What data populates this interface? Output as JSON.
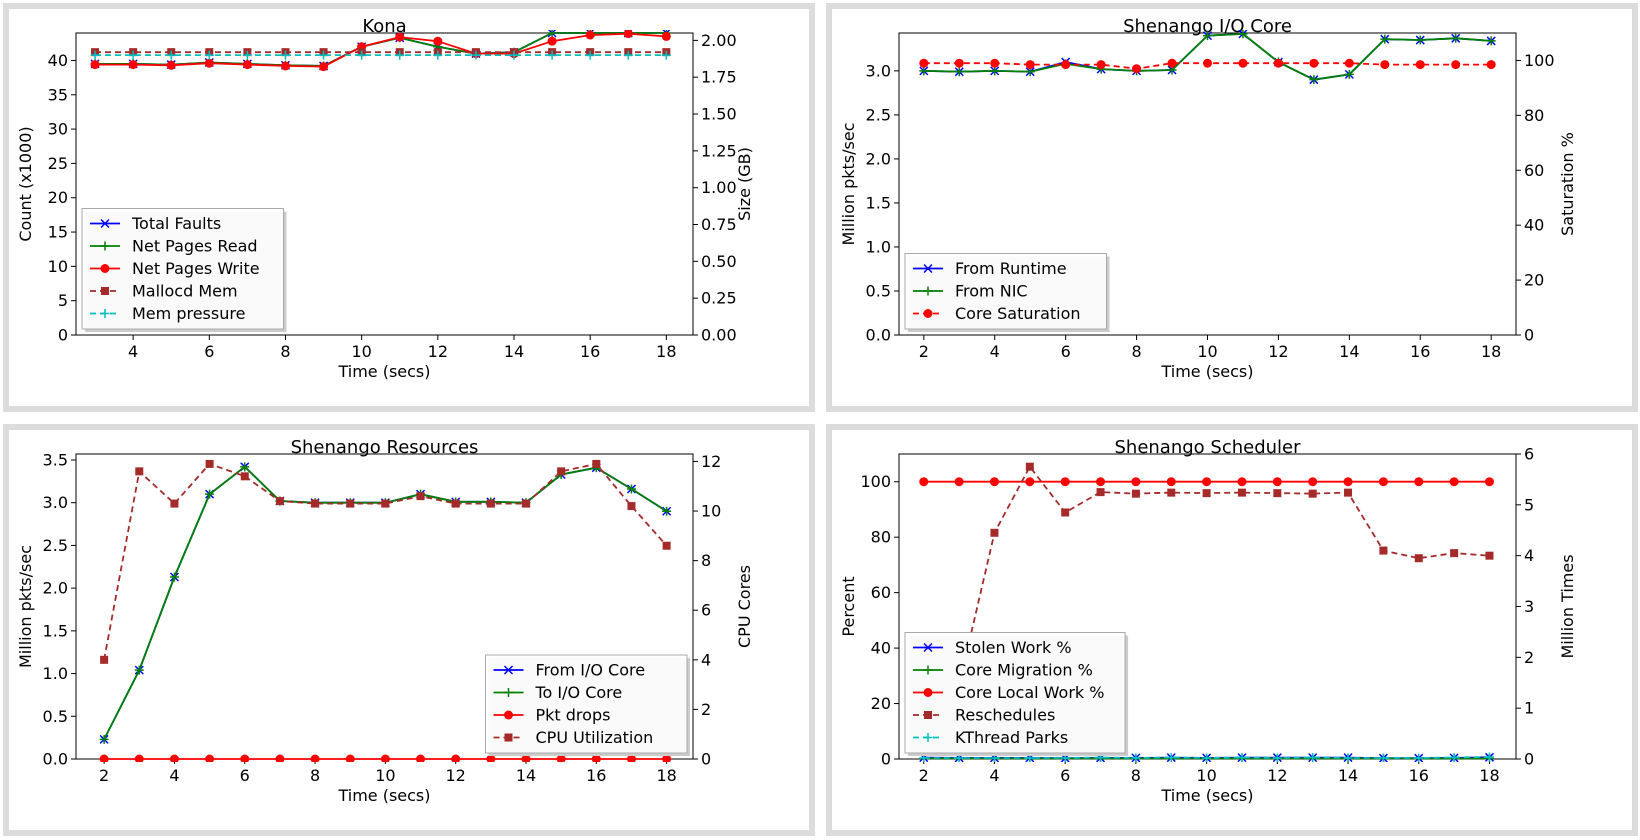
{
  "chart_data": [
    {
      "type": "line",
      "title": "Kona",
      "xlabel": "Time (secs)",
      "ylabel": "Count (x1000)",
      "y2label": "Size (GB)",
      "xlim": [
        2.5,
        18.7
      ],
      "ylim": [
        0,
        44
      ],
      "y2lim": [
        0,
        2.05
      ],
      "xticks": [
        4,
        6,
        8,
        10,
        12,
        14,
        16,
        18
      ],
      "yticks": [
        0,
        5,
        10,
        15,
        20,
        25,
        30,
        35,
        40
      ],
      "y2ticks": [
        0.0,
        0.25,
        0.5,
        0.75,
        1.0,
        1.25,
        1.5,
        1.75,
        2.0
      ],
      "legend_position": "lower-left",
      "x": [
        3,
        4,
        5,
        6,
        7,
        8,
        9,
        10,
        11,
        12,
        13,
        14,
        15,
        16,
        17,
        18
      ],
      "series": [
        {
          "name": "Total Faults",
          "color": "#0000ff",
          "marker": "x",
          "dash": false,
          "axis": "left",
          "values": [
            39.5,
            39.5,
            39.4,
            39.7,
            39.5,
            39.3,
            39.2,
            42.0,
            43.3,
            42.0,
            41.0,
            41.2,
            44.0,
            44.0,
            44.0,
            44.0
          ]
        },
        {
          "name": "Net Pages Read",
          "color": "#008000",
          "marker": "+",
          "dash": false,
          "axis": "left",
          "values": [
            39.5,
            39.5,
            39.4,
            39.7,
            39.5,
            39.3,
            39.2,
            42.0,
            43.3,
            42.0,
            41.0,
            41.2,
            44.0,
            44.0,
            44.0,
            44.0
          ]
        },
        {
          "name": "Net Pages Write",
          "color": "#ff0000",
          "marker": "o",
          "dash": false,
          "axis": "left",
          "values": [
            39.4,
            39.4,
            39.3,
            39.6,
            39.4,
            39.2,
            39.1,
            42.0,
            43.4,
            42.8,
            41.0,
            41.0,
            42.8,
            43.7,
            43.9,
            43.5
          ]
        },
        {
          "name": "Mallocd Mem",
          "color": "#a52a2a",
          "marker": "s",
          "dash": true,
          "axis": "right",
          "values": [
            1.92,
            1.92,
            1.92,
            1.92,
            1.92,
            1.92,
            1.92,
            1.92,
            1.92,
            1.92,
            1.92,
            1.92,
            1.92,
            1.92,
            1.92,
            1.92
          ]
        },
        {
          "name": "Mem pressure",
          "color": "#00bfbf",
          "marker": "+",
          "dash": true,
          "axis": "right",
          "values": [
            1.9,
            1.9,
            1.9,
            1.9,
            1.9,
            1.9,
            1.9,
            1.9,
            1.9,
            1.9,
            1.9,
            1.9,
            1.9,
            1.9,
            1.9,
            1.9
          ]
        }
      ]
    },
    {
      "type": "line",
      "title": "Shenango I/O Core",
      "xlabel": "Time (secs)",
      "ylabel": "Million pkts/sec",
      "y2label": "Saturation %",
      "xlim": [
        1.3,
        18.7
      ],
      "ylim": [
        0,
        3.43
      ],
      "y2lim": [
        0,
        110
      ],
      "xticks": [
        2,
        4,
        6,
        8,
        10,
        12,
        14,
        16,
        18
      ],
      "yticks": [
        0.0,
        0.5,
        1.0,
        1.5,
        2.0,
        2.5,
        3.0
      ],
      "y2ticks": [
        0,
        20,
        40,
        60,
        80,
        100
      ],
      "legend_position": "lower-left",
      "x": [
        2,
        3,
        4,
        5,
        6,
        7,
        8,
        9,
        10,
        11,
        12,
        13,
        14,
        15,
        16,
        17,
        18
      ],
      "series": [
        {
          "name": "From Runtime",
          "color": "#0000ff",
          "marker": "x",
          "dash": false,
          "axis": "left",
          "values": [
            3.0,
            2.99,
            3.0,
            2.99,
            3.1,
            3.02,
            3.0,
            3.01,
            3.4,
            3.42,
            3.1,
            2.9,
            2.96,
            3.36,
            3.35,
            3.37,
            3.34
          ]
        },
        {
          "name": "From NIC",
          "color": "#008000",
          "marker": "+",
          "dash": false,
          "axis": "left",
          "values": [
            3.0,
            2.99,
            3.0,
            2.99,
            3.08,
            3.02,
            3.0,
            3.01,
            3.4,
            3.42,
            3.1,
            2.9,
            2.96,
            3.36,
            3.35,
            3.37,
            3.34
          ]
        },
        {
          "name": "Core Saturation",
          "color": "#ff0000",
          "marker": "o",
          "dash": true,
          "axis": "right",
          "values": [
            99,
            99,
            99,
            98.5,
            98.5,
            98.5,
            97,
            99,
            99,
            99,
            99,
            99,
            99,
            98.5,
            98.5,
            98.5,
            98.5
          ]
        }
      ]
    },
    {
      "type": "line",
      "title": "Shenango Resources",
      "xlabel": "Time (secs)",
      "ylabel": "Million pkts/sec",
      "y2label": "CPU Cores",
      "xlim": [
        1.2,
        18.75
      ],
      "ylim": [
        0,
        3.57
      ],
      "y2lim": [
        0,
        12.3
      ],
      "xticks": [
        2,
        4,
        6,
        8,
        10,
        12,
        14,
        16,
        18
      ],
      "yticks": [
        0.0,
        0.5,
        1.0,
        1.5,
        2.0,
        2.5,
        3.0,
        3.5
      ],
      "y2ticks": [
        0,
        2,
        4,
        6,
        8,
        10,
        12
      ],
      "legend_position": "lower-right",
      "x": [
        2,
        3,
        4,
        5,
        6,
        7,
        8,
        9,
        10,
        11,
        12,
        13,
        14,
        15,
        16,
        17,
        18
      ],
      "series": [
        {
          "name": "From I/O Core",
          "color": "#0000ff",
          "marker": "x",
          "dash": false,
          "axis": "left",
          "values": [
            0.23,
            1.04,
            2.13,
            3.1,
            3.42,
            3.02,
            3.0,
            3.0,
            3.0,
            3.1,
            3.01,
            3.01,
            3.0,
            3.33,
            3.41,
            3.16,
            2.9
          ]
        },
        {
          "name": "To I/O Core",
          "color": "#008000",
          "marker": "+",
          "dash": false,
          "axis": "left",
          "values": [
            0.23,
            1.04,
            2.13,
            3.1,
            3.42,
            3.02,
            3.0,
            3.0,
            3.0,
            3.1,
            3.01,
            3.01,
            3.0,
            3.33,
            3.41,
            3.16,
            2.9
          ]
        },
        {
          "name": "Pkt drops",
          "color": "#ff0000",
          "marker": "o",
          "dash": false,
          "axis": "left",
          "values": [
            0,
            0,
            0,
            0,
            0,
            0,
            0,
            0,
            0,
            0,
            0,
            0,
            0,
            0,
            0,
            0,
            0
          ]
        },
        {
          "name": "CPU Utilization",
          "color": "#a52a2a",
          "marker": "s",
          "dash": true,
          "axis": "right",
          "values": [
            4.0,
            11.6,
            10.3,
            11.9,
            11.4,
            10.4,
            10.3,
            10.3,
            10.3,
            10.6,
            10.3,
            10.3,
            10.3,
            11.6,
            11.9,
            10.2,
            8.6
          ]
        }
      ]
    },
    {
      "type": "line",
      "title": "Shenango Scheduler",
      "xlabel": "Time (secs)",
      "ylabel": "Percent",
      "y2label": "Million Times",
      "xlim": [
        1.3,
        18.75
      ],
      "ylim": [
        0,
        110
      ],
      "y2lim": [
        0,
        6
      ],
      "xticks": [
        2,
        4,
        6,
        8,
        10,
        12,
        14,
        16,
        18
      ],
      "yticks": [
        0,
        20,
        40,
        60,
        80,
        100
      ],
      "y2ticks": [
        0,
        1,
        2,
        3,
        4,
        5,
        6
      ],
      "legend_position": "lower-left",
      "x": [
        2,
        3,
        4,
        5,
        6,
        7,
        8,
        9,
        10,
        11,
        12,
        13,
        14,
        15,
        16,
        17,
        18
      ],
      "series": [
        {
          "name": "Stolen Work %",
          "color": "#0000ff",
          "marker": "x",
          "dash": false,
          "axis": "left",
          "values": [
            0.5,
            0.4,
            0.4,
            0.4,
            0.3,
            0.4,
            0.4,
            0.5,
            0.4,
            0.5,
            0.5,
            0.5,
            0.5,
            0.3,
            0.3,
            0.4,
            0.6
          ]
        },
        {
          "name": "Core Migration %",
          "color": "#008000",
          "marker": "+",
          "dash": false,
          "axis": "left",
          "values": [
            0.2,
            0.2,
            0.2,
            0.2,
            0.2,
            0.2,
            0.2,
            0.2,
            0.2,
            0.2,
            0.2,
            0.2,
            0.2,
            0.2,
            0.2,
            0.2,
            0.2
          ]
        },
        {
          "name": "Core Local Work %",
          "color": "#ff0000",
          "marker": "o",
          "dash": false,
          "axis": "left",
          "values": [
            100,
            100,
            100,
            100,
            100,
            100,
            100,
            100,
            100,
            100,
            100,
            100,
            100,
            100,
            100,
            100,
            100
          ]
        },
        {
          "name": "Reschedules",
          "color": "#a52a2a",
          "marker": "s",
          "dash": true,
          "axis": "right",
          "values": [
            0.35,
            1.45,
            4.45,
            5.75,
            4.85,
            5.25,
            5.22,
            5.24,
            5.23,
            5.24,
            5.23,
            5.22,
            5.24,
            4.1,
            3.95,
            4.05,
            4.0
          ]
        },
        {
          "name": "KThread Parks",
          "color": "#00bfbf",
          "marker": "+",
          "dash": true,
          "axis": "right",
          "values": [
            0.02,
            0.02,
            0.02,
            0.02,
            0.02,
            0.03,
            0.02,
            0.03,
            0.02,
            0.03,
            0.02,
            0.03,
            0.02,
            0.02,
            0.02,
            0.03,
            0.04
          ]
        }
      ]
    }
  ]
}
